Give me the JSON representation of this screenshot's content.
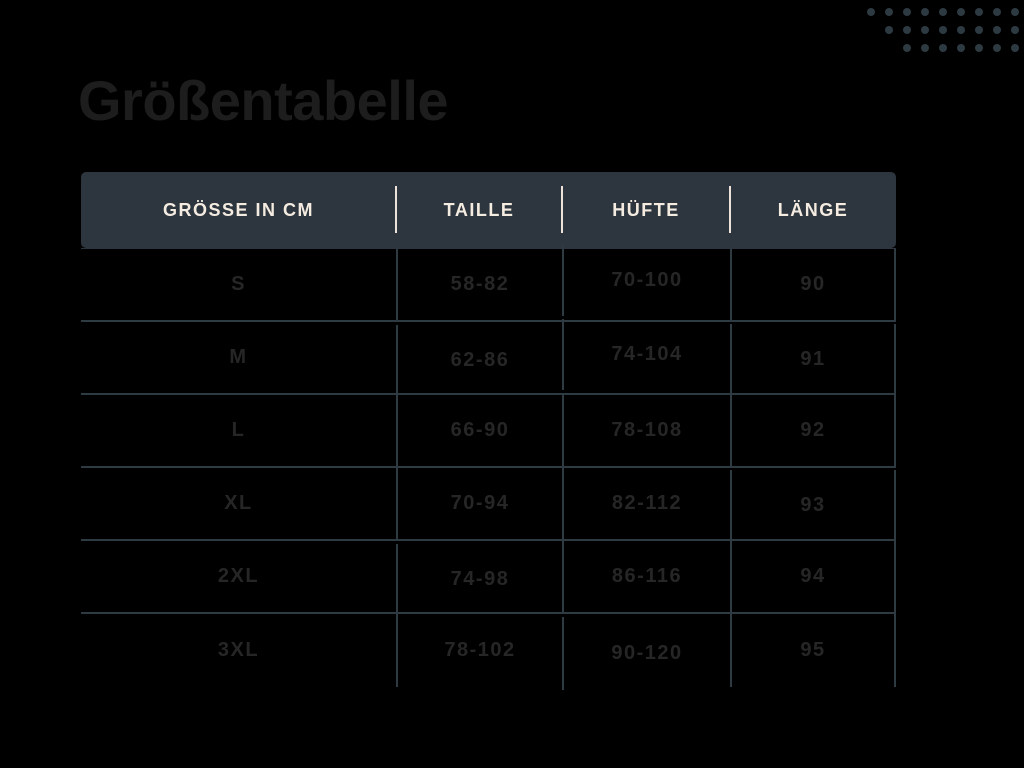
{
  "page": {
    "language": "de"
  },
  "chart_data": {
    "type": "table",
    "title": "Größentabelle",
    "unit_note": "cm",
    "columns": [
      "GRÖSSE IN CM",
      "TAILLE",
      "HÜFTE",
      "LÄNGE"
    ],
    "rows": [
      [
        "S",
        "58-82",
        "70-100",
        "90"
      ],
      [
        "M",
        "62-86",
        "74-104",
        "91"
      ],
      [
        "L",
        "66-90",
        "78-108",
        "92"
      ],
      [
        "XL",
        "70-94",
        "82-112",
        "93"
      ],
      [
        "2XL",
        "74-98",
        "86-116",
        "94"
      ],
      [
        "3XL",
        "78-102",
        "90-120",
        "95"
      ]
    ]
  },
  "decor": {
    "dot_rows": [
      9,
      8,
      7
    ]
  },
  "colors": {
    "bg": "#000000",
    "header-bg": "#2d353e",
    "header-text": "#f5ece1",
    "grid-line": "#2e3b42",
    "cell-text": "#262626",
    "title-text": "#1d1d1d",
    "dot": "#2d3a42"
  }
}
